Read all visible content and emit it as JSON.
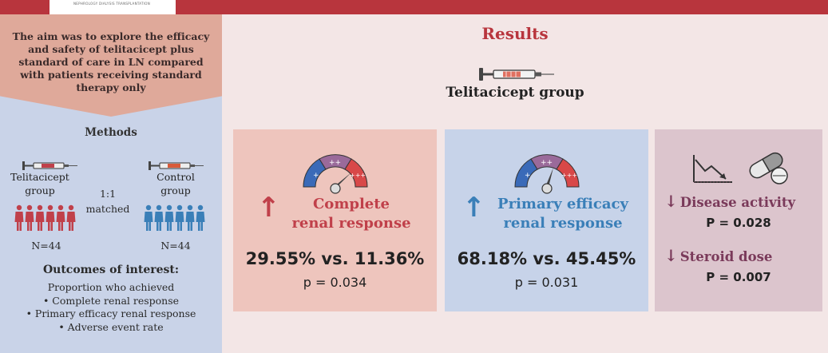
{
  "header": {
    "logo_text": "NEPHROLOGY DIALYSIS TRANSPLANTATION"
  },
  "aim": "The aim was to explore the efficacy and safety of telitacicept plus standard of care in LN compared with patients receiving standard therapy only",
  "methods": {
    "title": "Methods",
    "group1": {
      "label_line1": "Telitacicept",
      "label_line2": "group",
      "n": "N=44",
      "color": "#c0404a"
    },
    "ratio_line1": "1:1",
    "ratio_line2": "matched",
    "group2": {
      "label_line1": "Control",
      "label_line2": "group",
      "n": "N=44",
      "color": "#3a7fb8"
    }
  },
  "outcomes": {
    "title": "Outcomes of interest:",
    "intro": "Proportion who achieved",
    "items": [
      "• Complete renal response",
      "• Primary efficacy renal response",
      "• Adverse event rate"
    ]
  },
  "results": {
    "title": "Results",
    "group_title": "Telitacicept group",
    "card1": {
      "arrow": "↑",
      "line1": "Complete",
      "line2": "renal response",
      "values": "29.55% vs. 11.36%",
      "p": "p = 0.034",
      "color": "#c0404a"
    },
    "card2": {
      "arrow": "↑",
      "line1": "Primary efficacy",
      "line2": "renal response",
      "values": "68.18% vs. 45.45%",
      "p": "p = 0.031",
      "color": "#3a7fb8"
    },
    "card3": {
      "row1": {
        "arrow": "↓",
        "label": "Disease activity",
        "p": "P = 0.028"
      },
      "row2": {
        "arrow": "↓",
        "label": "Steroid dose",
        "p": "P = 0.007"
      },
      "color": "#7a3a5a"
    }
  },
  "icons": [
    "syringe-icon",
    "person-icon",
    "gauge-icon",
    "declining-chart-icon",
    "pill-icon"
  ]
}
